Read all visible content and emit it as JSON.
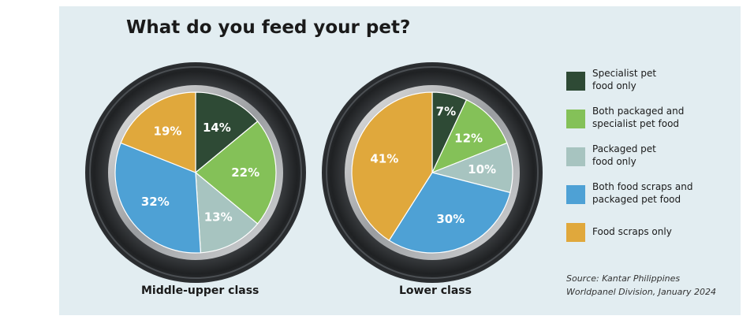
{
  "chart_data": {
    "type": "pie",
    "title": "What do you feed your pet?",
    "legend_position": "right",
    "categories": [
      "Specialist pet food only",
      "Both packaged and specialist pet food",
      "Packaged pet food only",
      "Both food scraps and packaged pet food",
      "Food scraps only"
    ],
    "colors": [
      "#2e4a35",
      "#84c158",
      "#a7c4c0",
      "#4ea1d5",
      "#e0a83c"
    ],
    "series": [
      {
        "name": "Middle-upper class",
        "values": [
          14,
          22,
          13,
          32,
          19
        ]
      },
      {
        "name": "Lower class",
        "values": [
          7,
          12,
          10,
          30,
          41
        ]
      }
    ],
    "source": "Source: Kantar Philippines Worldpanel Division, January 2024"
  },
  "legend": [
    {
      "line1": "Specialist pet",
      "line2": "food only"
    },
    {
      "line1": "Both packaged and",
      "line2": "specialist pet food"
    },
    {
      "line1": "Packaged pet",
      "line2": "food only"
    },
    {
      "line1": "Both food scraps and",
      "line2": "packaged pet food"
    },
    {
      "line1": "Food scraps only",
      "line2": ""
    }
  ],
  "source": {
    "line1": "Source: Kantar Philippines",
    "line2": "Worldpanel Division, January 2024"
  }
}
